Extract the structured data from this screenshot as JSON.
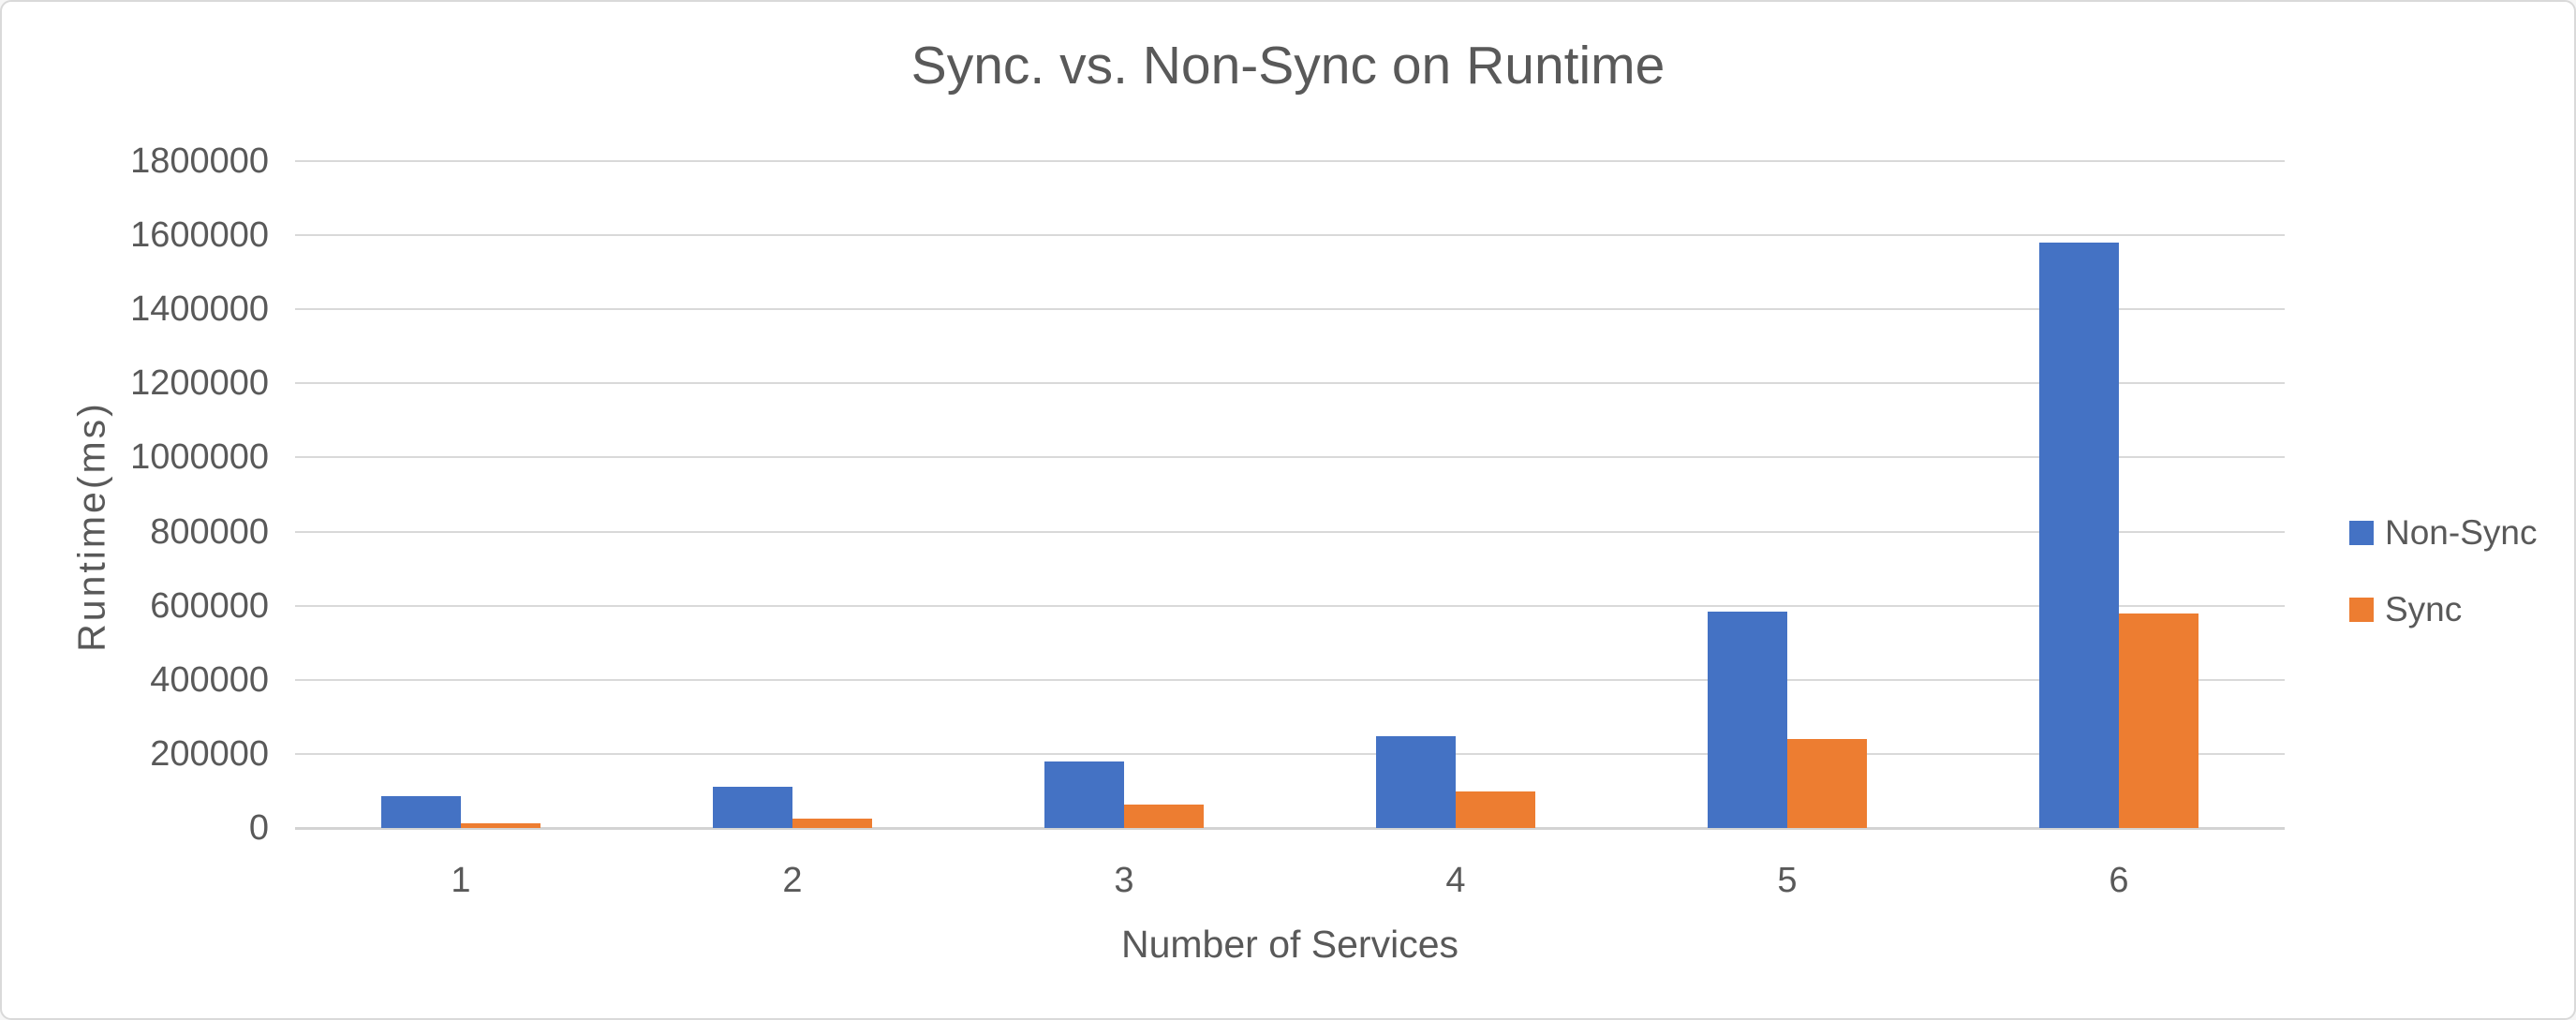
{
  "chart_data": {
    "type": "bar",
    "title": "Sync. vs. Non-Sync on Runtime",
    "xlabel": "Number of Services",
    "ylabel": "Runtime(ms)",
    "categories": [
      "1",
      "2",
      "3",
      "4",
      "5",
      "6"
    ],
    "series": [
      {
        "name": "Non-Sync",
        "color": "#4472C4",
        "values": [
          85000,
          112000,
          180000,
          248000,
          584000,
          1580000
        ]
      },
      {
        "name": "Sync",
        "color": "#ED7D31",
        "values": [
          12000,
          26000,
          64000,
          99000,
          240000,
          578000
        ]
      }
    ],
    "ylim": [
      0,
      1800000
    ],
    "yticks": [
      0,
      200000,
      400000,
      600000,
      800000,
      1000000,
      1200000,
      1400000,
      1600000,
      1800000
    ],
    "grid": true,
    "legend_position": "right"
  },
  "colors": {
    "text": "#595959",
    "gridline": "#D9D9D9",
    "axis_line": "#D3D3D3",
    "background": "#FFFFFF",
    "frame_border": "#D9D9D9"
  }
}
